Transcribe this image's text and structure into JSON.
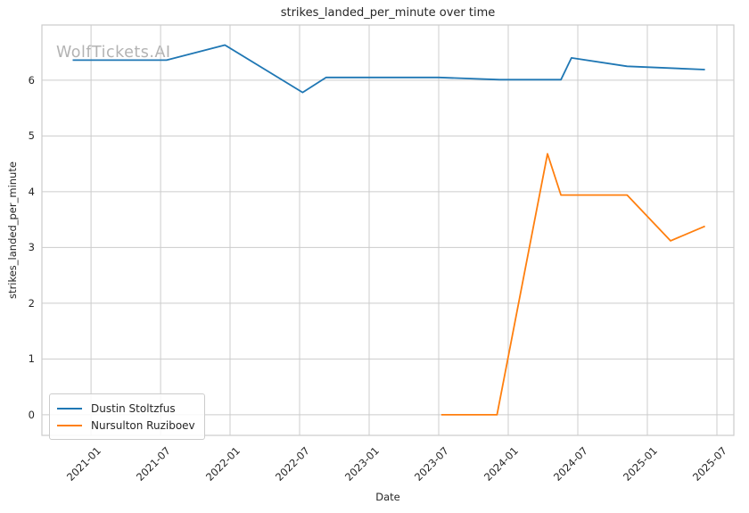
{
  "chart_data": {
    "type": "line",
    "title": "strikes_landed_per_minute over time",
    "xlabel": "Date",
    "ylabel": "strikes_landed_per_minute",
    "watermark": "WolfTickets.AI",
    "grid": true,
    "legend_position": "lower-left",
    "x_ticks": [
      "2021-01",
      "2021-07",
      "2022-01",
      "2022-07",
      "2023-01",
      "2023-07",
      "2024-01",
      "2024-07",
      "2025-01",
      "2025-07"
    ],
    "y_ticks": [
      0,
      1,
      2,
      3,
      4,
      5,
      6
    ],
    "xlim_decimal_years": [
      2020.647,
      2025.622
    ],
    "ylim": [
      -0.37,
      6.99
    ],
    "series": [
      {
        "name": "Dustin Stoltzfus",
        "color": "#1f77b4",
        "points": [
          [
            "2020-11-14",
            6.36
          ],
          [
            "2021-07-17",
            6.36
          ],
          [
            "2021-12-18",
            6.63
          ],
          [
            "2022-07-09",
            5.78
          ],
          [
            "2022-09-10",
            6.05
          ],
          [
            "2023-07-01",
            6.05
          ],
          [
            "2023-12-09",
            6.01
          ],
          [
            "2024-05-18",
            6.01
          ],
          [
            "2024-06-15",
            6.4
          ],
          [
            "2024-11-09",
            6.25
          ],
          [
            "2025-05-31",
            6.19
          ]
        ]
      },
      {
        "name": "Nursulton Ruziboev",
        "color": "#ff7f0e",
        "points": [
          [
            "2023-07-08",
            0.0
          ],
          [
            "2023-12-02",
            0.0
          ],
          [
            "2024-04-13",
            4.68
          ],
          [
            "2024-05-18",
            3.94
          ],
          [
            "2024-11-09",
            3.94
          ],
          [
            "2025-03-01",
            3.12
          ],
          [
            "2025-05-31",
            3.38
          ]
        ]
      }
    ]
  },
  "colors": {
    "grid": "#cccccc",
    "spine": "#cccccc",
    "text": "#262626",
    "watermark": "#b3b3b3",
    "series_blue": "#1f77b4",
    "series_orange": "#ff7f0e",
    "background": "#ffffff"
  }
}
